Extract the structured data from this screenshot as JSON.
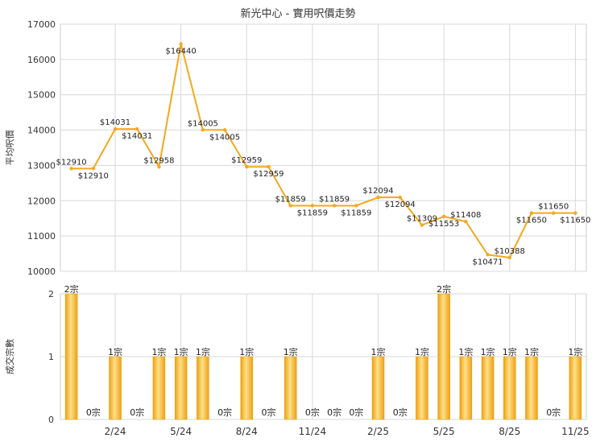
{
  "chart_data": [
    {
      "type": "line",
      "title": "新光中心 - 實用呎價走勢",
      "ylabel": "平均呎價",
      "ylim": [
        10000,
        17000
      ],
      "yticks": [
        10000,
        11000,
        12000,
        13000,
        14000,
        15000,
        16000,
        17000
      ],
      "grid": true,
      "line_color": "#f5a81c",
      "values": [
        12910,
        12910,
        14031,
        14031,
        12958,
        16440,
        14005,
        14005,
        12959,
        12959,
        11859,
        11859,
        11859,
        11859,
        12094,
        12094,
        11309,
        11553,
        11408,
        10471,
        10388,
        11650,
        11650,
        11650
      ],
      "labels": [
        "$12910",
        "$12910",
        "$14031",
        "$14031",
        "$12958",
        "$16440",
        "$14005",
        "$14005",
        "$12959",
        "$12959",
        "$11859",
        "$11859",
        "$11859",
        "$11859",
        "$12094",
        "$12094",
        "$11309",
        "$11553",
        "$11408",
        "$10471",
        "$10388",
        "$11650",
        "$11650",
        "$11650"
      ],
      "x": [
        "",
        "",
        "2/24",
        "",
        "",
        "5/24",
        "",
        "",
        "8/24",
        "",
        "",
        "11/24",
        "",
        "",
        "2/25",
        "",
        "",
        "5/25",
        "",
        "",
        "8/25",
        "",
        "",
        "11/25"
      ]
    },
    {
      "type": "bar",
      "ylabel": "成交宗數",
      "ylim": [
        0,
        2
      ],
      "yticks": [
        0,
        1,
        2
      ],
      "grid": true,
      "bar_color": "#f5b324",
      "values": [
        2,
        0,
        1,
        0,
        1,
        1,
        1,
        0,
        1,
        0,
        1,
        0,
        0,
        0,
        1,
        0,
        1,
        2,
        1,
        1,
        1,
        1,
        0,
        1
      ],
      "labels": [
        "2宗",
        "0宗",
        "1宗",
        "0宗",
        "1宗",
        "1宗",
        "1宗",
        "0宗",
        "1宗",
        "0宗",
        "1宗",
        "0宗",
        "0宗",
        "0宗",
        "1宗",
        "0宗",
        "1宗",
        "2宗",
        "1宗",
        "1宗",
        "1宗",
        "1宗",
        "0宗",
        "1宗"
      ],
      "x": [
        "",
        "",
        "2/24",
        "",
        "",
        "5/24",
        "",
        "",
        "8/24",
        "",
        "",
        "11/24",
        "",
        "",
        "2/25",
        "",
        "",
        "5/25",
        "",
        "",
        "8/25",
        "",
        "",
        "11/25"
      ]
    }
  ]
}
